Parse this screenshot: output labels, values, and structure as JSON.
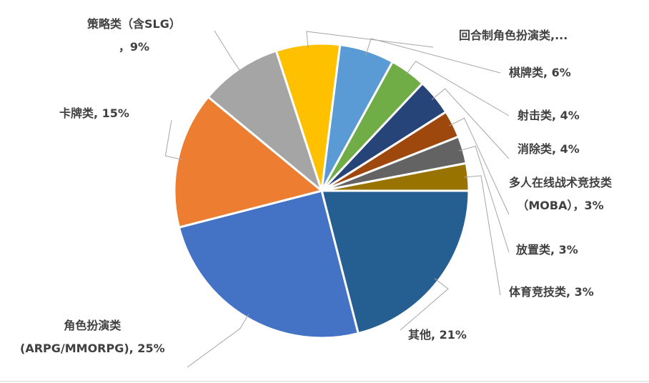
{
  "chart_data": {
    "type": "pie",
    "start_angle_deg": 0,
    "direction": "clockwise",
    "legend": "none",
    "slices": [
      {
        "label_lines": [
          "其他, 21%"
        ],
        "value": 21,
        "color": "#255E91"
      },
      {
        "label_lines": [
          "角色扮演类",
          "(ARPG/MMORPG), 25%"
        ],
        "value": 25,
        "color": "#4472C4"
      },
      {
        "label_lines": [
          "卡牌类, 15%"
        ],
        "value": 15,
        "color": "#ED7D31"
      },
      {
        "label_lines": [
          "策略类（含SLG）",
          "，9%"
        ],
        "value": 9,
        "color": "#A5A5A5"
      },
      {
        "label_lines": [
          "回合制角色扮演类,..."
        ],
        "value": 7,
        "color": "#FFC000"
      },
      {
        "label_lines": [
          "棋牌类, 6%"
        ],
        "value": 6,
        "color": "#5B9BD5"
      },
      {
        "label_lines": [
          "射击类, 4%"
        ],
        "value": 4,
        "color": "#70AD47"
      },
      {
        "label_lines": [
          "消除类, 4%"
        ],
        "value": 4,
        "color": "#264478"
      },
      {
        "label_lines": [
          "多人在线战术竞技类",
          "（MOBA），3%"
        ],
        "value": 3,
        "color": "#9E480E"
      },
      {
        "label_lines": [
          "放置类, 3%"
        ],
        "value": 3,
        "color": "#636363"
      },
      {
        "label_lines": [
          "体育竞技类, 3%"
        ],
        "value": 3,
        "color": "#997300"
      }
    ]
  }
}
